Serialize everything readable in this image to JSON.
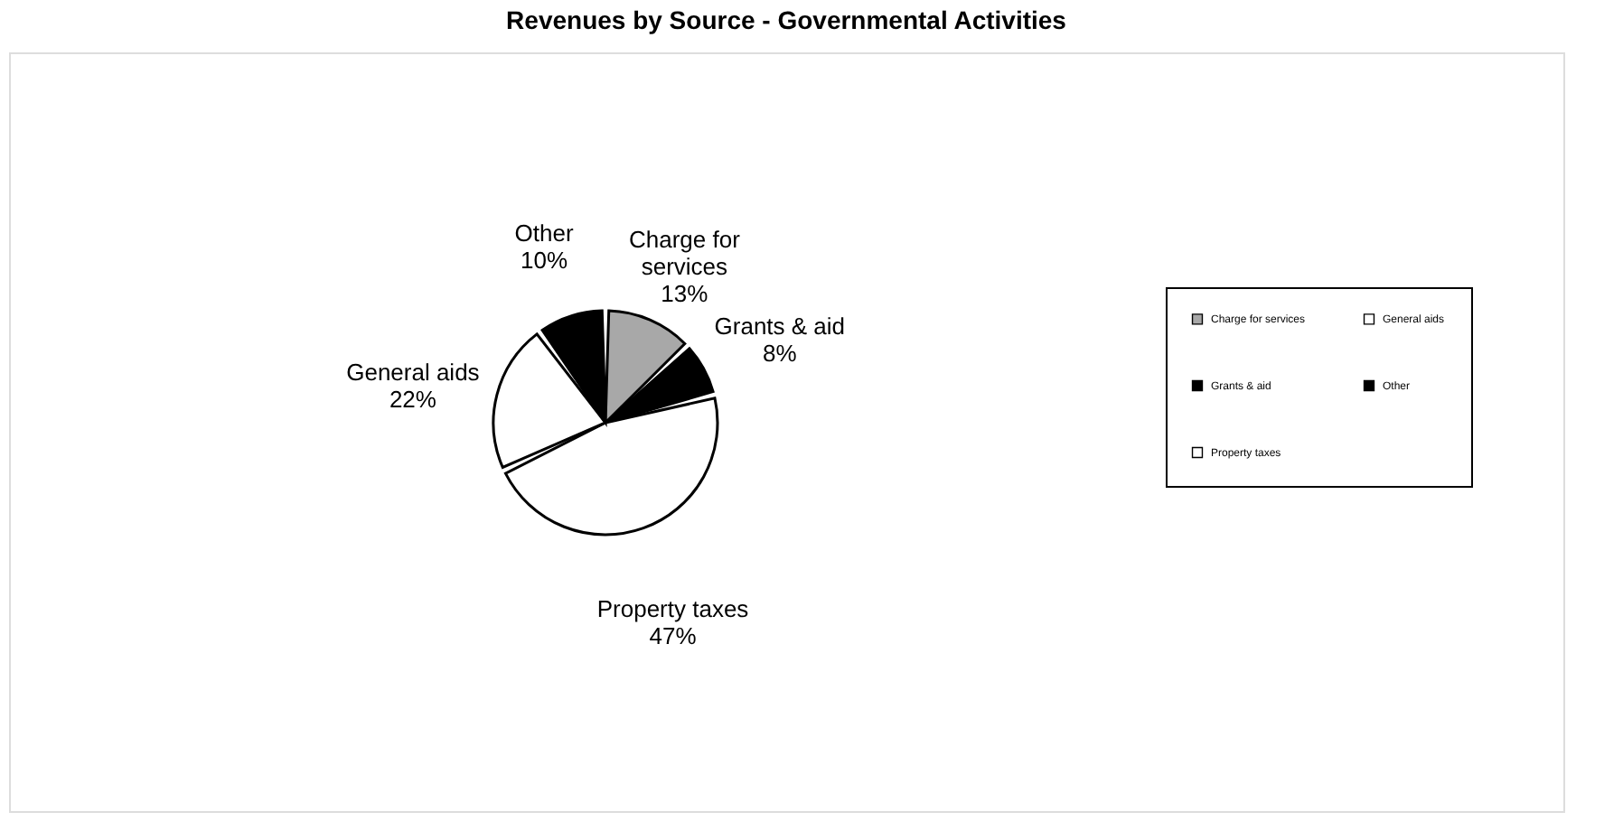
{
  "chart_data": {
    "type": "pie",
    "title": "Revenues by Source - Governmental Activities",
    "categories": [
      "Charge for services",
      "Grants & aid",
      "Property taxes",
      "General aids",
      "Other"
    ],
    "values": [
      13,
      8,
      47,
      22,
      10
    ],
    "value_labels": [
      "13%",
      "8%",
      "47%",
      "22%",
      "10%"
    ],
    "colors": [
      "#a8a8a8",
      "#000000",
      "#ffffff",
      "#ffffff",
      "#000000"
    ],
    "legend": "right"
  }
}
